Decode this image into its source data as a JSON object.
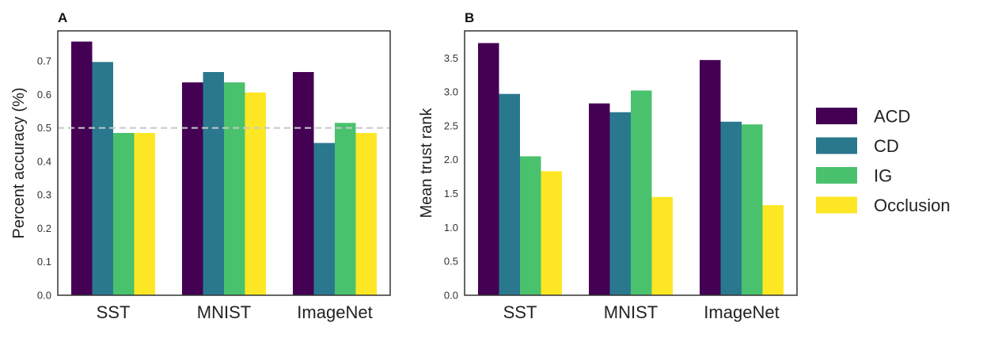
{
  "series_colors": {
    "ACD": "#440154",
    "CD": "#2a788e",
    "IG": "#4ac16d",
    "Occlusion": "#fde725"
  },
  "legend": [
    "ACD",
    "CD",
    "IG",
    "Occlusion"
  ],
  "chart_data": [
    {
      "type": "bar",
      "panel": "A",
      "title": "",
      "categories": [
        "SST",
        "MNIST",
        "ImageNet"
      ],
      "series": [
        {
          "name": "ACD",
          "values": [
            0.758,
            0.636,
            0.667
          ]
        },
        {
          "name": "CD",
          "values": [
            0.697,
            0.667,
            0.455
          ]
        },
        {
          "name": "IG",
          "values": [
            0.485,
            0.636,
            0.515
          ]
        },
        {
          "name": "Occlusion",
          "values": [
            0.485,
            0.606,
            0.485
          ]
        }
      ],
      "xlabel": "",
      "ylabel": "Percent accuracy (%)",
      "ylim": [
        0,
        0.79
      ],
      "yticks": [
        0.0,
        0.1,
        0.2,
        0.3,
        0.4,
        0.5,
        0.6,
        0.7
      ],
      "ytick_labels": [
        "0.0",
        "0.1",
        "0.2",
        "0.3",
        "0.4",
        "0.5",
        "0.6",
        "0.7"
      ],
      "reference_line": 0.5,
      "grid": false
    },
    {
      "type": "bar",
      "panel": "B",
      "title": "",
      "categories": [
        "SST",
        "MNIST",
        "ImageNet"
      ],
      "series": [
        {
          "name": "ACD",
          "values": [
            3.72,
            2.83,
            3.47
          ]
        },
        {
          "name": "CD",
          "values": [
            2.97,
            2.7,
            2.56
          ]
        },
        {
          "name": "IG",
          "values": [
            2.05,
            3.02,
            2.52
          ]
        },
        {
          "name": "Occlusion",
          "values": [
            1.83,
            1.45,
            1.33
          ]
        }
      ],
      "xlabel": "",
      "ylabel": "Mean trust rank",
      "ylim": [
        0,
        3.9
      ],
      "yticks": [
        0.0,
        0.5,
        1.0,
        1.5,
        2.0,
        2.5,
        3.0,
        3.5
      ],
      "ytick_labels": [
        "0.0",
        "0.5",
        "1.0",
        "1.5",
        "2.0",
        "2.5",
        "3.0",
        "3.5"
      ],
      "reference_line": null,
      "grid": false
    }
  ]
}
